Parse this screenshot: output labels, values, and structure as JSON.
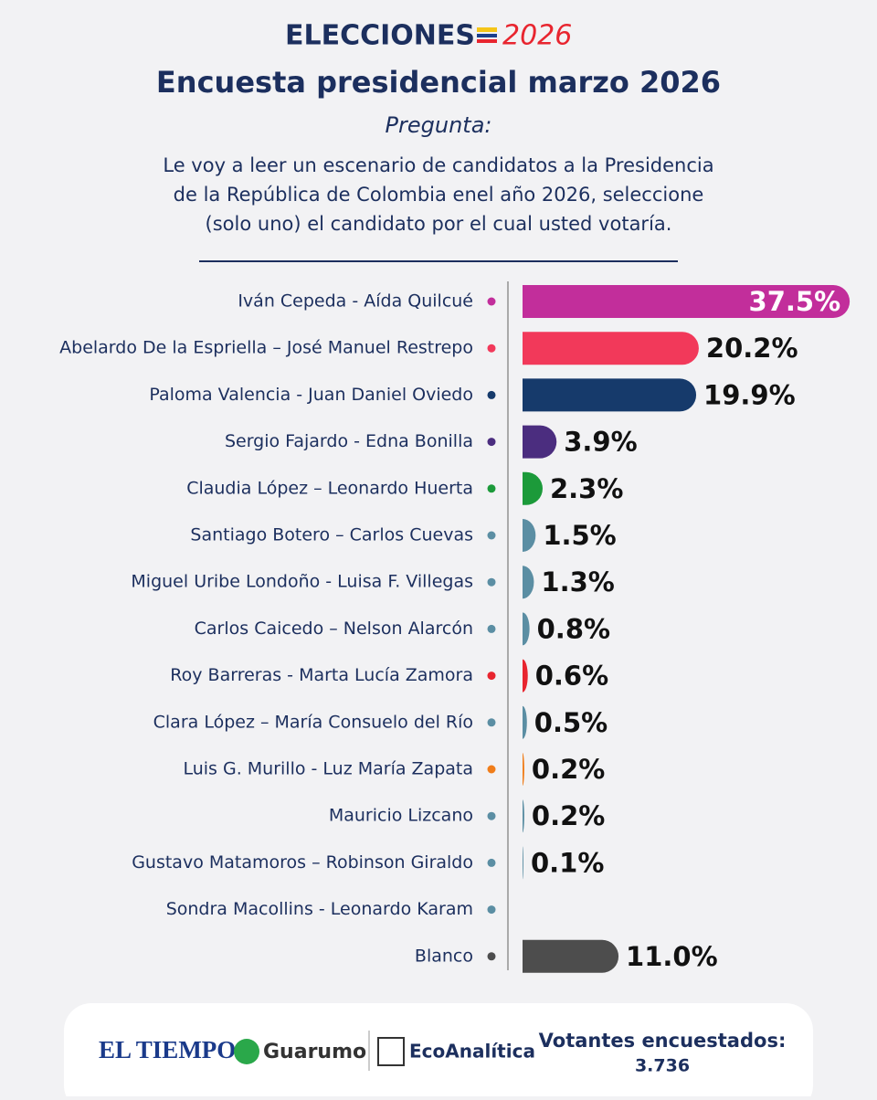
{
  "chart_data": {
    "type": "bar",
    "orientation": "horizontal",
    "brand": "ELECCIONES",
    "brand_year": "2026",
    "title": "Encuesta presidencial marzo 2026",
    "question_label": "Pregunta:",
    "question": [
      "Le voy a leer un escenario de candidatos a la Presidencia",
      "de la República de Colombia enel año 2026, seleccione",
      "(solo uno) el candidato por el cual usted votaría."
    ],
    "categories": [
      "Iván Cepeda - Aída Quilcué",
      "Abelardo De la Espriella – José Manuel Restrepo",
      "Paloma Valencia - Juan Daniel Oviedo",
      "Sergio Fajardo - Edna Bonilla",
      "Claudia López – Leonardo Huerta",
      "Santiago Botero – Carlos Cuevas",
      "Miguel Uribe Londoño - Luisa F. Villegas",
      "Carlos Caicedo – Nelson Alarcón",
      "Roy Barreras - Marta Lucía Zamora",
      "Clara López – María Consuelo del Río",
      "Luis G. Murillo - Luz María Zapata",
      "Mauricio Lizcano",
      "Gustavo Matamoros – Robinson Giraldo",
      "Sondra Macollins - Leonardo Karam",
      "Blanco"
    ],
    "values": [
      37.5,
      20.2,
      19.9,
      3.9,
      2.3,
      1.5,
      1.3,
      0.8,
      0.6,
      0.5,
      0.2,
      0.2,
      0.1,
      0,
      11.0
    ],
    "value_labels": [
      "37.5%",
      "20.2%",
      "19.9%",
      "3.9%",
      "2.3%",
      "1.5%",
      "1.3%",
      "0.8%",
      "0.6%",
      "0.5%",
      "0.2%",
      "0.2%",
      "0.1%",
      null,
      "11.0%"
    ],
    "colors": [
      "#c22e9b",
      "#f2395a",
      "#163a6b",
      "#4b2d7f",
      "#1c9a3a",
      "#5b8ea3",
      "#5b8ea3",
      "#5b8ea3",
      "#e8252f",
      "#5b8ea3",
      "#f07d1a",
      "#5b8ea3",
      "#5b8ea3",
      "#5b8ea3",
      "#4d4d4d"
    ],
    "xlim": [
      0,
      40
    ]
  },
  "footer": {
    "logos": [
      "EL TIEMPO",
      "Guarumo",
      "EcoAnalítica"
    ],
    "sample_label": "Votantes encuestados:",
    "sample": "3.736"
  }
}
